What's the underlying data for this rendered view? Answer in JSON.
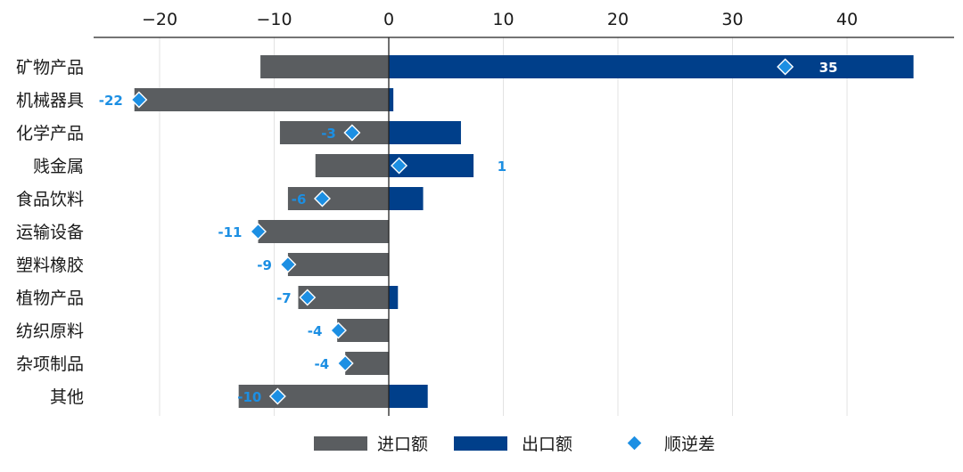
{
  "colors": {
    "import": "#5a5d60",
    "export": "#003f8a",
    "balance": "#1c8fe3",
    "balance_label_inside": "#ffffff",
    "axis": "#222222",
    "grid": "#e3e3e3"
  },
  "chart_data": {
    "type": "bar",
    "orientation": "horizontal",
    "title": "",
    "xlabel": "",
    "ylabel": "",
    "xlim": [
      -25,
      47
    ],
    "xticks": [
      -20,
      -10,
      0,
      10,
      20,
      30,
      40
    ],
    "xtick_labels": [
      "−20",
      "−10",
      "0",
      "10",
      "20",
      "30",
      "40"
    ],
    "x_axis_position": "top",
    "grid": true,
    "legend_position": "bottom",
    "categories": [
      "矿物产品",
      "机械器具",
      "化学产品",
      "贱金属",
      "食品饮料",
      "运输设备",
      "塑料橡胶",
      "植物产品",
      "纺织原料",
      "杂项制品",
      "其他"
    ],
    "series": [
      {
        "name": "进口额",
        "type": "bar",
        "values": [
          -11.2,
          -22.2,
          -9.5,
          -6.4,
          -8.8,
          -11.4,
          -8.8,
          -7.9,
          -4.5,
          -3.8,
          -13.1
        ]
      },
      {
        "name": "出口额",
        "type": "bar",
        "values": [
          45.8,
          0.4,
          6.3,
          7.4,
          3.0,
          0,
          0,
          0.8,
          0,
          0,
          3.4
        ]
      },
      {
        "name": "顺逆差",
        "type": "scatter",
        "marker": "diamond",
        "values": [
          34.6,
          -21.8,
          -3.2,
          0.9,
          -5.8,
          -11.4,
          -8.8,
          -7.1,
          -4.4,
          -3.8,
          -9.7
        ]
      }
    ],
    "balance_labels": [
      "35",
      "-22",
      "-3",
      "1",
      "-6",
      "-11",
      "-9",
      "-7",
      "-4",
      "-4",
      "-10"
    ]
  }
}
